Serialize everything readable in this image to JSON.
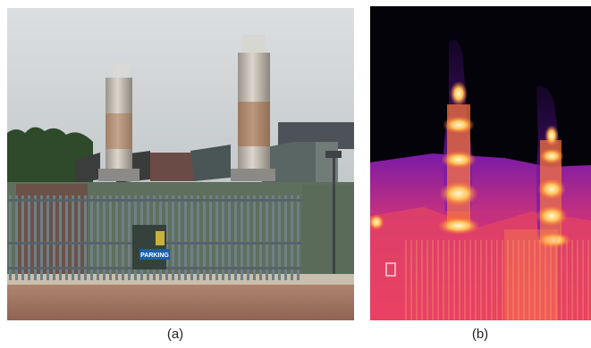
{
  "figure": {
    "panel_a": {
      "caption": "(a)",
      "sign_text": "PARKING",
      "colors": {
        "sky": "#cfd3d6",
        "fence": "#6f7f85",
        "enclosure": "#5f6f5e",
        "ground": "#a67a66"
      }
    },
    "panel_b": {
      "caption": "(b)",
      "colors": {
        "background": "#05030a",
        "cool": "#8a1fb3",
        "warm": "#e0376e",
        "hot": "#ffe6a8"
      }
    }
  }
}
